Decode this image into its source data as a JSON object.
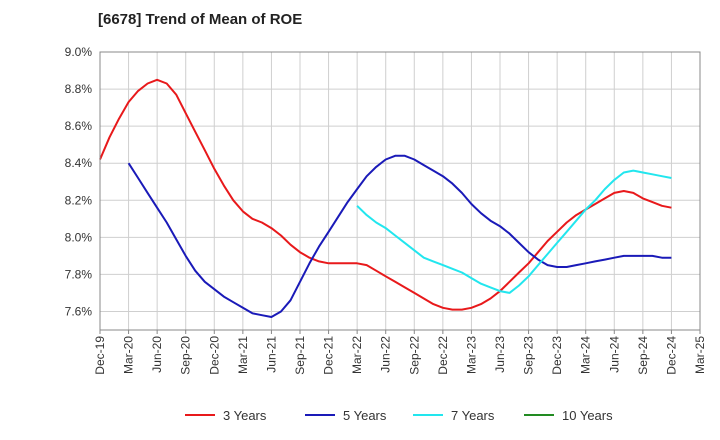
{
  "chart_data": {
    "type": "line",
    "title": "[6678]  Trend of Mean of ROE",
    "xlabel": "",
    "ylabel": "",
    "x_ticks": [
      "Dec-19",
      "Mar-20",
      "Jun-20",
      "Sep-20",
      "Dec-20",
      "Mar-21",
      "Jun-21",
      "Sep-21",
      "Dec-21",
      "Mar-22",
      "Jun-22",
      "Sep-22",
      "Dec-22",
      "Mar-23",
      "Jun-23",
      "Sep-23",
      "Dec-23",
      "Mar-24",
      "Jun-24",
      "Sep-24",
      "Dec-24",
      "Mar-25"
    ],
    "ylim": [
      7.5,
      9.0
    ],
    "y_ticks": [
      "7.6%",
      "7.8%",
      "8.0%",
      "8.2%",
      "8.4%",
      "8.6%",
      "8.8%",
      "9.0%"
    ],
    "y_tick_values": [
      7.6,
      7.8,
      8.0,
      8.2,
      8.4,
      8.6,
      8.8,
      9.0
    ],
    "grid": true,
    "legend_position": "bottom",
    "series": [
      {
        "name": "3 Years",
        "color": "#e8191b",
        "points": [
          [
            "Dec-19",
            8.42
          ],
          [
            "Jan-20",
            8.54
          ],
          [
            "Feb-20",
            8.64
          ],
          [
            "Mar-20",
            8.73
          ],
          [
            "Apr-20",
            8.79
          ],
          [
            "May-20",
            8.83
          ],
          [
            "Jun-20",
            8.85
          ],
          [
            "Jul-20",
            8.83
          ],
          [
            "Aug-20",
            8.77
          ],
          [
            "Sep-20",
            8.67
          ],
          [
            "Oct-20",
            8.57
          ],
          [
            "Nov-20",
            8.47
          ],
          [
            "Dec-20",
            8.37
          ],
          [
            "Jan-21",
            8.28
          ],
          [
            "Feb-21",
            8.2
          ],
          [
            "Mar-21",
            8.14
          ],
          [
            "Apr-21",
            8.1
          ],
          [
            "May-21",
            8.08
          ],
          [
            "Jun-21",
            8.05
          ],
          [
            "Jul-21",
            8.01
          ],
          [
            "Aug-21",
            7.96
          ],
          [
            "Sep-21",
            7.92
          ],
          [
            "Oct-21",
            7.89
          ],
          [
            "Nov-21",
            7.87
          ],
          [
            "Dec-21",
            7.86
          ],
          [
            "Jan-22",
            7.86
          ],
          [
            "Feb-22",
            7.86
          ],
          [
            "Mar-22",
            7.86
          ],
          [
            "Apr-22",
            7.85
          ],
          [
            "May-22",
            7.82
          ],
          [
            "Jun-22",
            7.79
          ],
          [
            "Jul-22",
            7.76
          ],
          [
            "Aug-22",
            7.73
          ],
          [
            "Sep-22",
            7.7
          ],
          [
            "Oct-22",
            7.67
          ],
          [
            "Nov-22",
            7.64
          ],
          [
            "Dec-22",
            7.62
          ],
          [
            "Jan-23",
            7.61
          ],
          [
            "Feb-23",
            7.61
          ],
          [
            "Mar-23",
            7.62
          ],
          [
            "Apr-23",
            7.64
          ],
          [
            "May-23",
            7.67
          ],
          [
            "Jun-23",
            7.71
          ],
          [
            "Jul-23",
            7.76
          ],
          [
            "Aug-23",
            7.81
          ],
          [
            "Sep-23",
            7.86
          ],
          [
            "Oct-23",
            7.92
          ],
          [
            "Nov-23",
            7.98
          ],
          [
            "Dec-23",
            8.03
          ],
          [
            "Jan-24",
            8.08
          ],
          [
            "Feb-24",
            8.12
          ],
          [
            "Mar-24",
            8.15
          ],
          [
            "Apr-24",
            8.18
          ],
          [
            "May-24",
            8.21
          ],
          [
            "Jun-24",
            8.24
          ],
          [
            "Jul-24",
            8.25
          ],
          [
            "Aug-24",
            8.24
          ],
          [
            "Sep-24",
            8.21
          ],
          [
            "Oct-24",
            8.19
          ],
          [
            "Nov-24",
            8.17
          ],
          [
            "Dec-24",
            8.16
          ]
        ]
      },
      {
        "name": "5 Years",
        "color": "#1a1ab8",
        "points": [
          [
            "Mar-20",
            8.4
          ],
          [
            "Apr-20",
            8.32
          ],
          [
            "May-20",
            8.24
          ],
          [
            "Jun-20",
            8.16
          ],
          [
            "Jul-20",
            8.08
          ],
          [
            "Aug-20",
            7.99
          ],
          [
            "Sep-20",
            7.9
          ],
          [
            "Oct-20",
            7.82
          ],
          [
            "Nov-20",
            7.76
          ],
          [
            "Dec-20",
            7.72
          ],
          [
            "Jan-21",
            7.68
          ],
          [
            "Feb-21",
            7.65
          ],
          [
            "Mar-21",
            7.62
          ],
          [
            "Apr-21",
            7.59
          ],
          [
            "May-21",
            7.58
          ],
          [
            "Jun-21",
            7.57
          ],
          [
            "Jul-21",
            7.6
          ],
          [
            "Aug-21",
            7.66
          ],
          [
            "Sep-21",
            7.76
          ],
          [
            "Oct-21",
            7.86
          ],
          [
            "Nov-21",
            7.95
          ],
          [
            "Dec-21",
            8.03
          ],
          [
            "Jan-22",
            8.11
          ],
          [
            "Feb-22",
            8.19
          ],
          [
            "Mar-22",
            8.26
          ],
          [
            "Apr-22",
            8.33
          ],
          [
            "May-22",
            8.38
          ],
          [
            "Jun-22",
            8.42
          ],
          [
            "Jul-22",
            8.44
          ],
          [
            "Aug-22",
            8.44
          ],
          [
            "Sep-22",
            8.42
          ],
          [
            "Oct-22",
            8.39
          ],
          [
            "Nov-22",
            8.36
          ],
          [
            "Dec-22",
            8.33
          ],
          [
            "Jan-23",
            8.29
          ],
          [
            "Feb-23",
            8.24
          ],
          [
            "Mar-23",
            8.18
          ],
          [
            "Apr-23",
            8.13
          ],
          [
            "May-23",
            8.09
          ],
          [
            "Jun-23",
            8.06
          ],
          [
            "Jul-23",
            8.02
          ],
          [
            "Aug-23",
            7.97
          ],
          [
            "Sep-23",
            7.92
          ],
          [
            "Oct-23",
            7.88
          ],
          [
            "Nov-23",
            7.85
          ],
          [
            "Dec-23",
            7.84
          ],
          [
            "Jan-24",
            7.84
          ],
          [
            "Feb-24",
            7.85
          ],
          [
            "Mar-24",
            7.86
          ],
          [
            "Apr-24",
            7.87
          ],
          [
            "May-24",
            7.88
          ],
          [
            "Jun-24",
            7.89
          ],
          [
            "Jul-24",
            7.9
          ],
          [
            "Aug-24",
            7.9
          ],
          [
            "Sep-24",
            7.9
          ],
          [
            "Oct-24",
            7.9
          ],
          [
            "Nov-24",
            7.89
          ],
          [
            "Dec-24",
            7.89
          ]
        ]
      },
      {
        "name": "7 Years",
        "color": "#22e6ee",
        "points": [
          [
            "Mar-22",
            8.17
          ],
          [
            "Apr-22",
            8.12
          ],
          [
            "May-22",
            8.08
          ],
          [
            "Jun-22",
            8.05
          ],
          [
            "Jul-22",
            8.01
          ],
          [
            "Aug-22",
            7.97
          ],
          [
            "Sep-22",
            7.93
          ],
          [
            "Oct-22",
            7.89
          ],
          [
            "Nov-22",
            7.87
          ],
          [
            "Dec-22",
            7.85
          ],
          [
            "Jan-23",
            7.83
          ],
          [
            "Feb-23",
            7.81
          ],
          [
            "Mar-23",
            7.78
          ],
          [
            "Apr-23",
            7.75
          ],
          [
            "May-23",
            7.73
          ],
          [
            "Jun-23",
            7.71
          ],
          [
            "Jul-23",
            7.7
          ],
          [
            "Aug-23",
            7.74
          ],
          [
            "Sep-23",
            7.79
          ],
          [
            "Oct-23",
            7.85
          ],
          [
            "Nov-23",
            7.91
          ],
          [
            "Dec-23",
            7.97
          ],
          [
            "Jan-24",
            8.03
          ],
          [
            "Feb-24",
            8.09
          ],
          [
            "Mar-24",
            8.15
          ],
          [
            "Apr-24",
            8.2
          ],
          [
            "May-24",
            8.26
          ],
          [
            "Jun-24",
            8.31
          ],
          [
            "Jul-24",
            8.35
          ],
          [
            "Aug-24",
            8.36
          ],
          [
            "Sep-24",
            8.35
          ],
          [
            "Oct-24",
            8.34
          ],
          [
            "Nov-24",
            8.33
          ],
          [
            "Dec-24",
            8.32
          ]
        ]
      },
      {
        "name": "10 Years",
        "color": "#228b22",
        "points": []
      }
    ]
  }
}
